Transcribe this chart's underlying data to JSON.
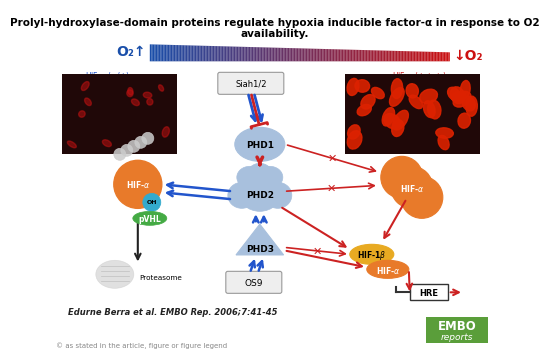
{
  "title_line1": "Prolyl-hydroxylase-domain proteins regulate hypoxia inducible factor-α in response to O2",
  "title_line2": "availability.",
  "title_fontsize": 7.5,
  "title_color": "#000000",
  "bg_color": "#ffffff",
  "citation": "Edurne Berra et al. EMBO Rep. 2006;7:41-45",
  "citation_fontsize": 6.0,
  "copyright": "© as stated in the article, figure or figure legend",
  "copyright_fontsize": 5.0,
  "embo_box_color": "#5a9e3a",
  "gradient_left_color": "#1a4faa",
  "gradient_right_color": "#cc1111",
  "o2_up_label": "O₂↑",
  "o2_down_label": "↓O₂",
  "o2_left_color": "#1a4faa",
  "o2_right_color": "#cc1111",
  "phd1_label": "PHD1",
  "phd2_label": "PHD2",
  "phd3_label": "PHD3",
  "os9_label": "OS9",
  "siah_label": "Siah1/2",
  "hif_alpha_label": "HIF-α",
  "hif1b_label": "HIF-1β",
  "oh_label": "OH",
  "pvhl_label": "pVHL",
  "proteasome_label": "Proteasome",
  "hre_label": "HRE",
  "blue": "#2255cc",
  "red": "#cc2222",
  "orange": "#e87a2a",
  "orange_dark": "#cc5500",
  "cloud_blue": "#a8c0dd",
  "cloud_edge": "#6688bb",
  "yellow_gold": "#e8aa22",
  "yellow_dark": "#aa7700"
}
